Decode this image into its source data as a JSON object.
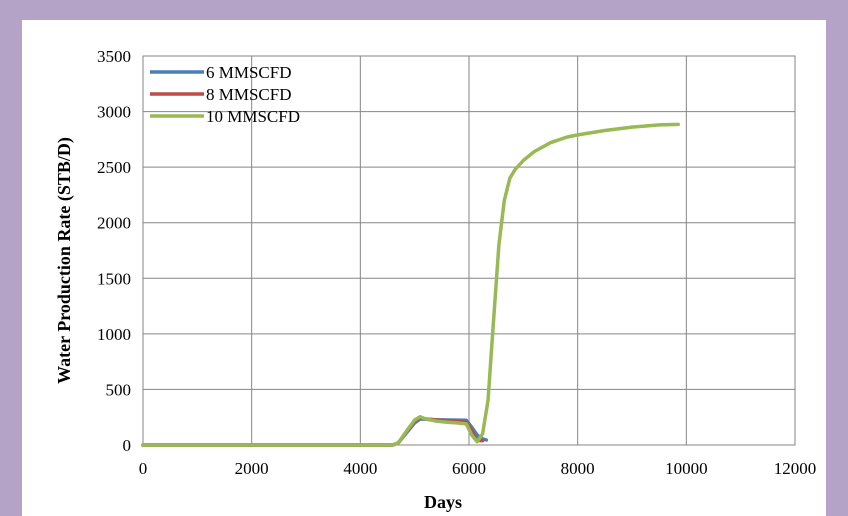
{
  "chart_data": {
    "type": "line",
    "xlabel": "Days",
    "ylabel": "Water Production Rate (STB/D)",
    "xlim": [
      0,
      12000
    ],
    "ylim": [
      0,
      3500
    ],
    "xticks": [
      "0",
      "2000",
      "4000",
      "6000",
      "8000",
      "10000",
      "12000"
    ],
    "yticks": [
      "0",
      "500",
      "1000",
      "1500",
      "2000",
      "2500",
      "3000",
      "3500"
    ],
    "grid": true,
    "legend_position": "top-left",
    "series": [
      {
        "name": "6 MMSCFD",
        "color": "#4a7ebb",
        "x": [
          0,
          4600,
          4700,
          4850,
          5000,
          5100,
          5200,
          5400,
          5600,
          5800,
          5950,
          6050,
          6150,
          6250,
          6320
        ],
        "y": [
          0,
          0,
          20,
          110,
          200,
          235,
          232,
          228,
          225,
          224,
          222,
          160,
          90,
          55,
          45
        ]
      },
      {
        "name": "8 MMSCFD",
        "color": "#be4b48",
        "x": [
          0,
          4600,
          4700,
          4850,
          5000,
          5100,
          5200,
          5400,
          5600,
          5800,
          5950,
          6050,
          6120,
          6200,
          6250
        ],
        "y": [
          0,
          0,
          20,
          120,
          215,
          245,
          235,
          225,
          218,
          212,
          205,
          130,
          60,
          40,
          40
        ]
      },
      {
        "name": "10 MMSCFD",
        "color": "#98b954",
        "x": [
          0,
          4600,
          4700,
          4850,
          5000,
          5100,
          5200,
          5400,
          5600,
          5800,
          5950,
          6050,
          6150,
          6250,
          6350,
          6450,
          6550,
          6650,
          6750,
          6850,
          7000,
          7200,
          7500,
          7800,
          8000,
          8500,
          9000,
          9500,
          9850
        ],
        "y": [
          0,
          0,
          20,
          125,
          225,
          255,
          235,
          215,
          205,
          198,
          190,
          90,
          30,
          100,
          400,
          1100,
          1800,
          2200,
          2400,
          2480,
          2560,
          2640,
          2720,
          2770,
          2790,
          2830,
          2860,
          2880,
          2885
        ]
      }
    ]
  }
}
